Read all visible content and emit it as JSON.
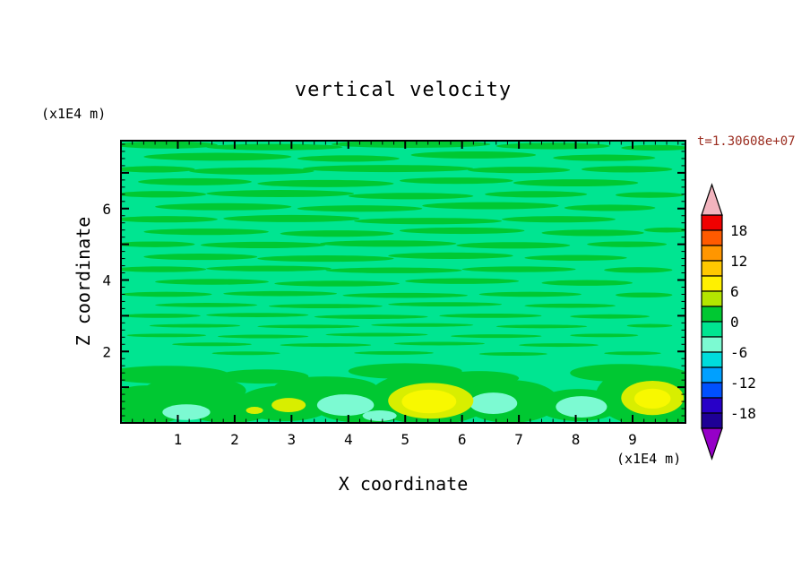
{
  "chart_data": {
    "type": "heatmap",
    "title": "vertical velocity",
    "annotation": "t=1.30608e+07",
    "x_axis": {
      "label": "X coordinate",
      "units": "(x1E4 m)",
      "range": [
        0,
        9.93
      ],
      "tick_labels": [
        1,
        2,
        3,
        4,
        5,
        6,
        7,
        8,
        9
      ],
      "major_tick_step": 1,
      "minor_tick_step": 0.2
    },
    "y_axis": {
      "label": "Z coordinate",
      "units": "(x1E4 m)",
      "range": [
        0,
        7.9
      ],
      "tick_labels": [
        2,
        4,
        6
      ],
      "major_tick_step": 1,
      "minor_tick_step": 0.2
    },
    "colorbar": {
      "range": [
        -21,
        21
      ],
      "band_step": 3,
      "labels": [
        18,
        12,
        6,
        0,
        -6,
        -12,
        -18
      ],
      "band_colors_top_to_bottom": [
        "#f00000",
        "#ff5a00",
        "#ff9600",
        "#ffc800",
        "#fff000",
        "#b4e600",
        "#00c832",
        "#00e591",
        "#7cfad2",
        "#00dcdc",
        "#00a0ff",
        "#0050ff",
        "#2800c8",
        "#1e0096"
      ],
      "top_arrow_color": "#f2b4be",
      "bottom_arrow_color": "#9600c8"
    },
    "field": {
      "description": "Near-zero vertical velocity field: spring-green background (-3..0 band) with elongated green streaks (0..3 band) through the interior; near the lower boundary larger green cells with yellow updraft cores (+6..+12) near x=2.95, x=5.45, x=9.35 and pale-cyan downdraft patches (-6..-3) near x=1.15, x=3.95, x=4.55, x=6.55, x=8.1",
      "background_color": "#00e591",
      "streak_color": "#00c832",
      "cyan_color": "#7cfad2",
      "ring_color": "#d8ee00",
      "core_color": "#f8f800",
      "streaks": [
        [
          0.8,
          7.78,
          0.9,
          0.1
        ],
        [
          2.7,
          7.72,
          1.2,
          0.09
        ],
        [
          5.1,
          7.8,
          1.4,
          0.1
        ],
        [
          7.6,
          7.75,
          1.0,
          0.09
        ],
        [
          9.4,
          7.7,
          0.6,
          0.08
        ],
        [
          1.7,
          7.45,
          1.3,
          0.11
        ],
        [
          4.0,
          7.4,
          0.9,
          0.09
        ],
        [
          6.2,
          7.5,
          1.1,
          0.1
        ],
        [
          8.5,
          7.42,
          0.9,
          0.09
        ],
        [
          0.6,
          7.1,
          0.7,
          0.09
        ],
        [
          2.3,
          7.05,
          1.1,
          0.1
        ],
        [
          4.7,
          7.12,
          1.5,
          0.1
        ],
        [
          7.0,
          7.08,
          0.9,
          0.09
        ],
        [
          8.9,
          7.1,
          0.8,
          0.09
        ],
        [
          1.3,
          6.75,
          1.0,
          0.1
        ],
        [
          3.6,
          6.7,
          1.2,
          0.1
        ],
        [
          5.9,
          6.78,
          1.0,
          0.09
        ],
        [
          8.0,
          6.72,
          1.1,
          0.1
        ],
        [
          0.7,
          6.4,
          0.8,
          0.09
        ],
        [
          2.8,
          6.42,
          1.3,
          0.1
        ],
        [
          5.1,
          6.35,
          1.1,
          0.09
        ],
        [
          7.3,
          6.4,
          0.9,
          0.09
        ],
        [
          9.3,
          6.38,
          0.6,
          0.08
        ],
        [
          1.8,
          6.05,
          1.2,
          0.1
        ],
        [
          4.2,
          6.0,
          1.1,
          0.09
        ],
        [
          6.5,
          6.08,
          1.2,
          0.1
        ],
        [
          8.6,
          6.02,
          0.8,
          0.09
        ],
        [
          0.8,
          5.7,
          0.9,
          0.09
        ],
        [
          3.0,
          5.72,
          1.2,
          0.1
        ],
        [
          5.4,
          5.65,
          1.3,
          0.09
        ],
        [
          7.7,
          5.7,
          1.0,
          0.09
        ],
        [
          1.5,
          5.35,
          1.1,
          0.09
        ],
        [
          3.8,
          5.3,
          1.0,
          0.09
        ],
        [
          6.0,
          5.38,
          1.1,
          0.09
        ],
        [
          8.3,
          5.32,
          0.9,
          0.09
        ],
        [
          9.6,
          5.4,
          0.4,
          0.07
        ],
        [
          0.6,
          5.0,
          0.7,
          0.08
        ],
        [
          2.5,
          4.98,
          1.1,
          0.09
        ],
        [
          4.7,
          5.02,
          1.2,
          0.09
        ],
        [
          6.9,
          4.97,
          1.0,
          0.09
        ],
        [
          8.9,
          5.0,
          0.7,
          0.08
        ],
        [
          1.4,
          4.65,
          1.0,
          0.09
        ],
        [
          3.6,
          4.6,
          1.2,
          0.09
        ],
        [
          5.8,
          4.68,
          1.1,
          0.09
        ],
        [
          8.0,
          4.62,
          0.9,
          0.08
        ],
        [
          0.7,
          4.3,
          0.8,
          0.08
        ],
        [
          2.6,
          4.32,
          1.1,
          0.08
        ],
        [
          4.8,
          4.27,
          1.2,
          0.08
        ],
        [
          7.0,
          4.3,
          1.0,
          0.08
        ],
        [
          9.1,
          4.28,
          0.6,
          0.08
        ],
        [
          1.6,
          3.95,
          1.0,
          0.08
        ],
        [
          3.8,
          3.9,
          1.1,
          0.08
        ],
        [
          6.0,
          3.97,
          1.0,
          0.08
        ],
        [
          8.2,
          3.92,
          0.8,
          0.08
        ],
        [
          0.8,
          3.6,
          0.8,
          0.07
        ],
        [
          2.8,
          3.62,
          1.0,
          0.07
        ],
        [
          5.0,
          3.57,
          1.1,
          0.07
        ],
        [
          7.2,
          3.6,
          0.9,
          0.07
        ],
        [
          9.2,
          3.58,
          0.5,
          0.07
        ],
        [
          1.5,
          3.3,
          0.9,
          0.06
        ],
        [
          3.6,
          3.27,
          1.0,
          0.06
        ],
        [
          5.7,
          3.32,
          1.0,
          0.06
        ],
        [
          7.9,
          3.28,
          0.8,
          0.06
        ],
        [
          0.7,
          3.0,
          0.7,
          0.06
        ],
        [
          2.4,
          3.02,
          0.9,
          0.06
        ],
        [
          4.4,
          2.97,
          1.0,
          0.06
        ],
        [
          6.5,
          3.0,
          0.9,
          0.06
        ],
        [
          8.6,
          2.98,
          0.7,
          0.06
        ],
        [
          1.3,
          2.72,
          0.8,
          0.05
        ],
        [
          3.3,
          2.7,
          0.9,
          0.05
        ],
        [
          5.3,
          2.74,
          0.9,
          0.05
        ],
        [
          7.4,
          2.7,
          0.8,
          0.05
        ],
        [
          9.3,
          2.72,
          0.4,
          0.05
        ],
        [
          0.8,
          2.45,
          0.7,
          0.05
        ],
        [
          2.5,
          2.42,
          0.8,
          0.05
        ],
        [
          4.5,
          2.47,
          0.9,
          0.05
        ],
        [
          6.6,
          2.43,
          0.8,
          0.05
        ],
        [
          8.5,
          2.45,
          0.6,
          0.05
        ],
        [
          1.6,
          2.2,
          0.7,
          0.05
        ],
        [
          3.6,
          2.18,
          0.8,
          0.05
        ],
        [
          5.6,
          2.22,
          0.8,
          0.05
        ],
        [
          7.7,
          2.18,
          0.7,
          0.05
        ],
        [
          2.2,
          1.95,
          0.6,
          0.05
        ],
        [
          4.8,
          1.96,
          0.7,
          0.05
        ],
        [
          6.9,
          1.93,
          0.6,
          0.05
        ],
        [
          9.0,
          1.95,
          0.5,
          0.05
        ]
      ],
      "bottom_cells": [
        [
          0.45,
          0.5,
          0.75,
          0.55
        ],
        [
          1.3,
          0.9,
          0.9,
          0.4
        ],
        [
          1.9,
          0.4,
          0.8,
          0.4
        ],
        [
          2.9,
          0.55,
          0.85,
          0.5
        ],
        [
          3.6,
          1.0,
          0.9,
          0.3
        ],
        [
          4.3,
          0.45,
          0.9,
          0.45
        ],
        [
          5.45,
          0.7,
          1.1,
          0.75
        ],
        [
          6.85,
          0.6,
          0.85,
          0.6
        ],
        [
          8.05,
          0.5,
          0.75,
          0.45
        ],
        [
          9.35,
          0.75,
          1.0,
          0.85
        ],
        [
          0.8,
          1.35,
          1.1,
          0.25
        ],
        [
          5.0,
          1.45,
          1.0,
          0.22
        ],
        [
          8.8,
          1.4,
          0.9,
          0.25
        ],
        [
          2.5,
          1.3,
          0.8,
          0.2
        ],
        [
          6.3,
          1.25,
          0.7,
          0.2
        ]
      ],
      "cyan_patches": [
        [
          1.15,
          0.3,
          0.42,
          0.22
        ],
        [
          3.95,
          0.5,
          0.5,
          0.3
        ],
        [
          6.55,
          0.55,
          0.42,
          0.3
        ],
        [
          8.1,
          0.45,
          0.45,
          0.3
        ],
        [
          4.55,
          0.2,
          0.3,
          0.15
        ]
      ],
      "yellow_rings": [
        [
          5.45,
          0.62,
          0.75,
          0.5
        ],
        [
          9.35,
          0.7,
          0.55,
          0.48
        ],
        [
          2.95,
          0.5,
          0.3,
          0.2
        ],
        [
          2.35,
          0.35,
          0.15,
          0.1
        ]
      ],
      "yellow_cores": [
        [
          5.42,
          0.6,
          0.48,
          0.33
        ],
        [
          9.35,
          0.68,
          0.32,
          0.28
        ]
      ]
    }
  }
}
